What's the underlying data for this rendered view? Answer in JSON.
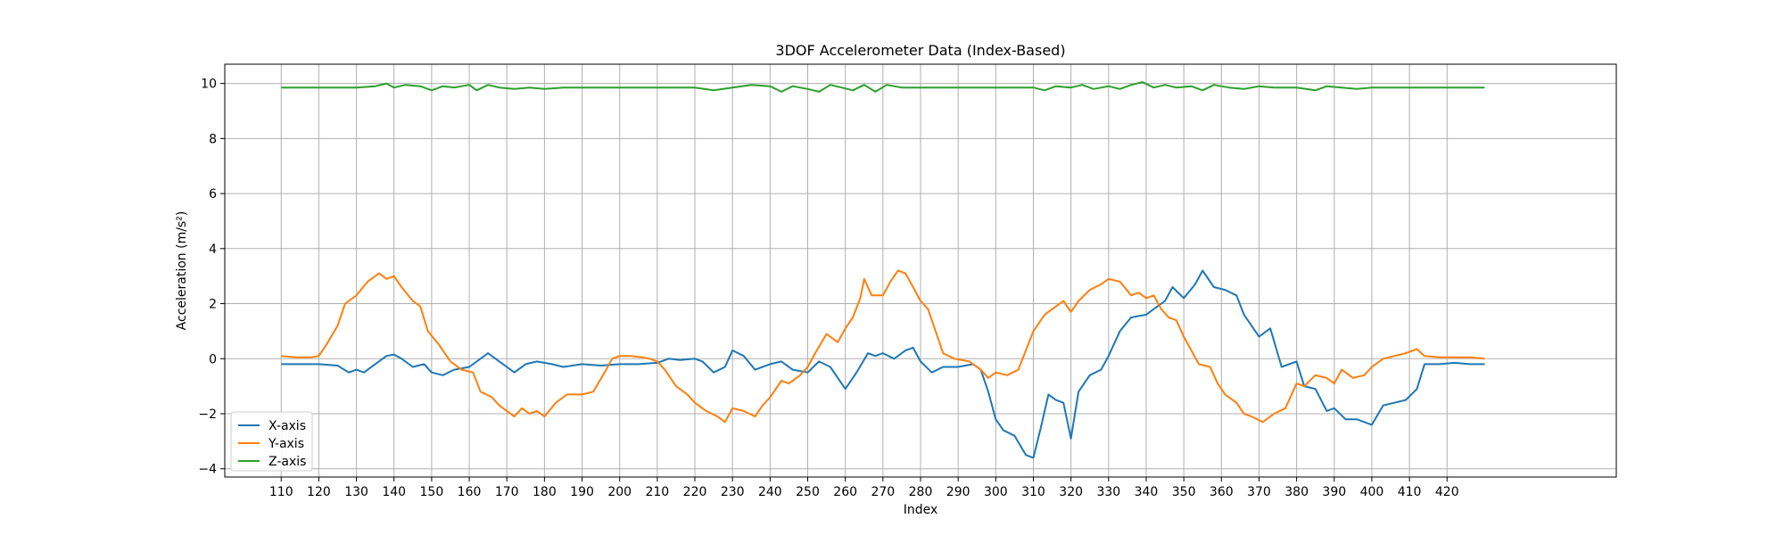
{
  "chart_data": {
    "type": "line",
    "title": "3DOF Accelerometer Data (Index-Based)",
    "xlabel": "Index",
    "ylabel": "Acceleration (m/s²)",
    "xlim": [
      95,
      465
    ],
    "ylim": [
      -4.3,
      10.7
    ],
    "x_ticks": [
      110,
      120,
      130,
      140,
      150,
      160,
      170,
      180,
      190,
      200,
      210,
      220,
      230,
      240,
      250,
      260,
      270,
      280,
      290,
      300,
      310,
      320,
      330,
      340,
      350,
      360,
      370,
      380,
      390,
      400,
      410,
      420
    ],
    "y_ticks": [
      -4,
      -2,
      0,
      2,
      4,
      6,
      8,
      10
    ],
    "grid": true,
    "legend_position": "lower-left",
    "series": [
      {
        "name": "X-axis",
        "color": "#1f77b4",
        "points": [
          [
            110,
            -0.2
          ],
          [
            115,
            -0.2
          ],
          [
            120,
            -0.2
          ],
          [
            125,
            -0.25
          ],
          [
            128,
            -0.5
          ],
          [
            130,
            -0.4
          ],
          [
            132,
            -0.5
          ],
          [
            135,
            -0.2
          ],
          [
            138,
            0.1
          ],
          [
            140,
            0.15
          ],
          [
            142,
            0.0
          ],
          [
            145,
            -0.3
          ],
          [
            148,
            -0.2
          ],
          [
            150,
            -0.5
          ],
          [
            153,
            -0.6
          ],
          [
            156,
            -0.4
          ],
          [
            160,
            -0.3
          ],
          [
            163,
            0.0
          ],
          [
            165,
            0.2
          ],
          [
            168,
            -0.1
          ],
          [
            170,
            -0.3
          ],
          [
            172,
            -0.5
          ],
          [
            175,
            -0.2
          ],
          [
            178,
            -0.1
          ],
          [
            182,
            -0.2
          ],
          [
            185,
            -0.3
          ],
          [
            190,
            -0.2
          ],
          [
            195,
            -0.25
          ],
          [
            200,
            -0.2
          ],
          [
            205,
            -0.2
          ],
          [
            210,
            -0.15
          ],
          [
            213,
            0.0
          ],
          [
            216,
            -0.05
          ],
          [
            220,
            0.0
          ],
          [
            222,
            -0.1
          ],
          [
            225,
            -0.5
          ],
          [
            228,
            -0.3
          ],
          [
            230,
            0.3
          ],
          [
            233,
            0.1
          ],
          [
            236,
            -0.4
          ],
          [
            240,
            -0.2
          ],
          [
            243,
            -0.1
          ],
          [
            246,
            -0.4
          ],
          [
            250,
            -0.5
          ],
          [
            253,
            -0.1
          ],
          [
            256,
            -0.3
          ],
          [
            260,
            -1.1
          ],
          [
            263,
            -0.5
          ],
          [
            266,
            0.2
          ],
          [
            268,
            0.1
          ],
          [
            270,
            0.2
          ],
          [
            273,
            0.0
          ],
          [
            276,
            0.3
          ],
          [
            278,
            0.4
          ],
          [
            280,
            -0.1
          ],
          [
            283,
            -0.5
          ],
          [
            286,
            -0.3
          ],
          [
            290,
            -0.3
          ],
          [
            294,
            -0.2
          ],
          [
            296,
            -0.4
          ],
          [
            298,
            -1.2
          ],
          [
            300,
            -2.2
          ],
          [
            302,
            -2.6
          ],
          [
            305,
            -2.8
          ],
          [
            308,
            -3.5
          ],
          [
            310,
            -3.6
          ],
          [
            312,
            -2.5
          ],
          [
            314,
            -1.3
          ],
          [
            316,
            -1.5
          ],
          [
            318,
            -1.6
          ],
          [
            320,
            -2.9
          ],
          [
            322,
            -1.2
          ],
          [
            325,
            -0.6
          ],
          [
            328,
            -0.4
          ],
          [
            330,
            0.1
          ],
          [
            333,
            1.0
          ],
          [
            336,
            1.5
          ],
          [
            340,
            1.6
          ],
          [
            343,
            1.9
          ],
          [
            345,
            2.1
          ],
          [
            347,
            2.6
          ],
          [
            350,
            2.2
          ],
          [
            353,
            2.7
          ],
          [
            355,
            3.2
          ],
          [
            358,
            2.6
          ],
          [
            361,
            2.5
          ],
          [
            364,
            2.3
          ],
          [
            366,
            1.6
          ],
          [
            370,
            0.8
          ],
          [
            373,
            1.1
          ],
          [
            376,
            -0.3
          ],
          [
            380,
            -0.1
          ],
          [
            382,
            -1.0
          ],
          [
            385,
            -1.1
          ],
          [
            388,
            -1.9
          ],
          [
            390,
            -1.8
          ],
          [
            393,
            -2.2
          ],
          [
            396,
            -2.2
          ],
          [
            400,
            -2.4
          ],
          [
            403,
            -1.7
          ],
          [
            406,
            -1.6
          ],
          [
            409,
            -1.5
          ],
          [
            412,
            -1.1
          ],
          [
            414,
            -0.2
          ],
          [
            418,
            -0.2
          ],
          [
            422,
            -0.15
          ],
          [
            426,
            -0.2
          ],
          [
            430,
            -0.2
          ]
        ]
      },
      {
        "name": "Y-axis",
        "color": "#ff7f0e",
        "points": [
          [
            110,
            0.1
          ],
          [
            114,
            0.05
          ],
          [
            118,
            0.05
          ],
          [
            120,
            0.1
          ],
          [
            122,
            0.5
          ],
          [
            125,
            1.2
          ],
          [
            127,
            2.0
          ],
          [
            130,
            2.3
          ],
          [
            133,
            2.8
          ],
          [
            136,
            3.1
          ],
          [
            138,
            2.9
          ],
          [
            140,
            3.0
          ],
          [
            142,
            2.6
          ],
          [
            145,
            2.1
          ],
          [
            147,
            1.9
          ],
          [
            149,
            1.0
          ],
          [
            152,
            0.5
          ],
          [
            155,
            -0.1
          ],
          [
            158,
            -0.4
          ],
          [
            161,
            -0.5
          ],
          [
            163,
            -1.2
          ],
          [
            166,
            -1.4
          ],
          [
            168,
            -1.7
          ],
          [
            170,
            -1.9
          ],
          [
            172,
            -2.1
          ],
          [
            174,
            -1.8
          ],
          [
            176,
            -2.0
          ],
          [
            178,
            -1.9
          ],
          [
            180,
            -2.1
          ],
          [
            183,
            -1.6
          ],
          [
            186,
            -1.3
          ],
          [
            190,
            -1.3
          ],
          [
            193,
            -1.2
          ],
          [
            196,
            -0.5
          ],
          [
            198,
            0.0
          ],
          [
            200,
            0.1
          ],
          [
            203,
            0.1
          ],
          [
            206,
            0.05
          ],
          [
            208,
            0.0
          ],
          [
            210,
            -0.1
          ],
          [
            212,
            -0.4
          ],
          [
            215,
            -1.0
          ],
          [
            218,
            -1.3
          ],
          [
            220,
            -1.6
          ],
          [
            223,
            -1.9
          ],
          [
            226,
            -2.1
          ],
          [
            228,
            -2.3
          ],
          [
            230,
            -1.8
          ],
          [
            233,
            -1.9
          ],
          [
            236,
            -2.1
          ],
          [
            238,
            -1.7
          ],
          [
            240,
            -1.4
          ],
          [
            243,
            -0.8
          ],
          [
            245,
            -0.9
          ],
          [
            248,
            -0.6
          ],
          [
            250,
            -0.3
          ],
          [
            252,
            0.2
          ],
          [
            255,
            0.9
          ],
          [
            258,
            0.6
          ],
          [
            260,
            1.1
          ],
          [
            262,
            1.5
          ],
          [
            264,
            2.2
          ],
          [
            265,
            2.9
          ],
          [
            267,
            2.3
          ],
          [
            270,
            2.3
          ],
          [
            272,
            2.8
          ],
          [
            274,
            3.2
          ],
          [
            276,
            3.1
          ],
          [
            278,
            2.6
          ],
          [
            280,
            2.1
          ],
          [
            282,
            1.8
          ],
          [
            284,
            1.0
          ],
          [
            286,
            0.2
          ],
          [
            289,
            0.0
          ],
          [
            293,
            -0.1
          ],
          [
            296,
            -0.4
          ],
          [
            298,
            -0.7
          ],
          [
            300,
            -0.5
          ],
          [
            303,
            -0.6
          ],
          [
            306,
            -0.4
          ],
          [
            308,
            0.3
          ],
          [
            310,
            1.0
          ],
          [
            313,
            1.6
          ],
          [
            316,
            1.9
          ],
          [
            318,
            2.1
          ],
          [
            320,
            1.7
          ],
          [
            322,
            2.1
          ],
          [
            325,
            2.5
          ],
          [
            328,
            2.7
          ],
          [
            330,
            2.9
          ],
          [
            333,
            2.8
          ],
          [
            336,
            2.3
          ],
          [
            338,
            2.4
          ],
          [
            340,
            2.2
          ],
          [
            342,
            2.3
          ],
          [
            344,
            1.8
          ],
          [
            346,
            1.5
          ],
          [
            348,
            1.4
          ],
          [
            350,
            0.8
          ],
          [
            352,
            0.3
          ],
          [
            354,
            -0.2
          ],
          [
            357,
            -0.3
          ],
          [
            359,
            -0.9
          ],
          [
            361,
            -1.3
          ],
          [
            364,
            -1.6
          ],
          [
            366,
            -2.0
          ],
          [
            368,
            -2.1
          ],
          [
            371,
            -2.3
          ],
          [
            374,
            -2.0
          ],
          [
            377,
            -1.8
          ],
          [
            380,
            -0.9
          ],
          [
            382,
            -1.0
          ],
          [
            385,
            -0.6
          ],
          [
            388,
            -0.7
          ],
          [
            390,
            -0.9
          ],
          [
            392,
            -0.4
          ],
          [
            395,
            -0.7
          ],
          [
            398,
            -0.6
          ],
          [
            400,
            -0.3
          ],
          [
            403,
            0.0
          ],
          [
            406,
            0.1
          ],
          [
            409,
            0.2
          ],
          [
            412,
            0.35
          ],
          [
            414,
            0.1
          ],
          [
            418,
            0.05
          ],
          [
            422,
            0.05
          ],
          [
            426,
            0.05
          ],
          [
            430,
            0.0
          ]
        ]
      },
      {
        "name": "Z-axis",
        "color": "#2ca02c",
        "points": [
          [
            110,
            9.85
          ],
          [
            115,
            9.85
          ],
          [
            120,
            9.85
          ],
          [
            125,
            9.85
          ],
          [
            130,
            9.85
          ],
          [
            135,
            9.9
          ],
          [
            138,
            10.0
          ],
          [
            140,
            9.85
          ],
          [
            143,
            9.95
          ],
          [
            147,
            9.9
          ],
          [
            150,
            9.75
          ],
          [
            153,
            9.9
          ],
          [
            156,
            9.85
          ],
          [
            160,
            9.95
          ],
          [
            162,
            9.75
          ],
          [
            165,
            9.95
          ],
          [
            168,
            9.85
          ],
          [
            172,
            9.8
          ],
          [
            176,
            9.85
          ],
          [
            180,
            9.8
          ],
          [
            185,
            9.85
          ],
          [
            190,
            9.85
          ],
          [
            200,
            9.85
          ],
          [
            210,
            9.85
          ],
          [
            220,
            9.85
          ],
          [
            225,
            9.75
          ],
          [
            230,
            9.85
          ],
          [
            235,
            9.95
          ],
          [
            240,
            9.9
          ],
          [
            243,
            9.7
          ],
          [
            246,
            9.9
          ],
          [
            250,
            9.8
          ],
          [
            253,
            9.7
          ],
          [
            256,
            9.95
          ],
          [
            259,
            9.85
          ],
          [
            262,
            9.75
          ],
          [
            265,
            9.95
          ],
          [
            268,
            9.7
          ],
          [
            271,
            9.95
          ],
          [
            275,
            9.85
          ],
          [
            280,
            9.85
          ],
          [
            290,
            9.85
          ],
          [
            300,
            9.85
          ],
          [
            310,
            9.85
          ],
          [
            313,
            9.75
          ],
          [
            316,
            9.9
          ],
          [
            320,
            9.85
          ],
          [
            323,
            9.95
          ],
          [
            326,
            9.8
          ],
          [
            330,
            9.9
          ],
          [
            333,
            9.8
          ],
          [
            336,
            9.95
          ],
          [
            339,
            10.05
          ],
          [
            342,
            9.85
          ],
          [
            345,
            9.95
          ],
          [
            348,
            9.85
          ],
          [
            352,
            9.9
          ],
          [
            355,
            9.75
          ],
          [
            358,
            9.95
          ],
          [
            362,
            9.85
          ],
          [
            366,
            9.8
          ],
          [
            370,
            9.9
          ],
          [
            374,
            9.85
          ],
          [
            380,
            9.85
          ],
          [
            385,
            9.75
          ],
          [
            388,
            9.9
          ],
          [
            392,
            9.85
          ],
          [
            396,
            9.8
          ],
          [
            400,
            9.85
          ],
          [
            410,
            9.85
          ],
          [
            420,
            9.85
          ],
          [
            430,
            9.85
          ]
        ]
      }
    ]
  }
}
